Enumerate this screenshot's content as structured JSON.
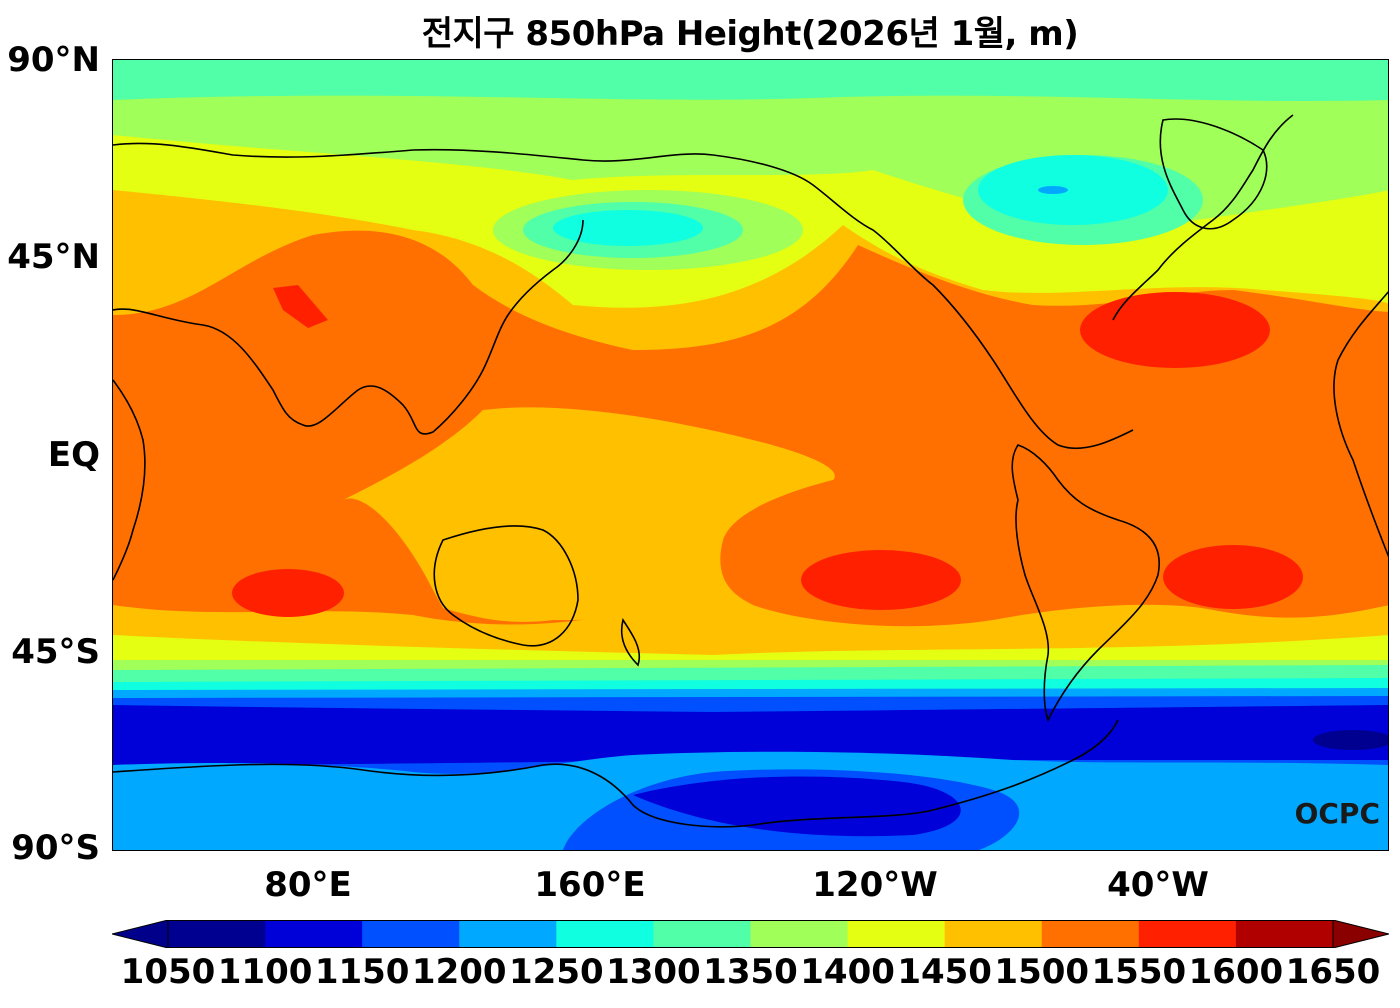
{
  "title": "전지구 850hPa Height(2026년 1월, m)",
  "lat_labels": [
    "90°N",
    "45°N",
    "EQ",
    "45°S",
    "90°S"
  ],
  "lon_labels": [
    "80°E",
    "160°E",
    "120°W",
    "40°W"
  ],
  "watermark": "OCPC",
  "colorbar": {
    "levels": [
      "1050",
      "1100",
      "1150",
      "1200",
      "1250",
      "1300",
      "1350",
      "1400",
      "1450",
      "1500",
      "1550",
      "1600",
      "1650"
    ],
    "colors": [
      "#000090",
      "#0000d8",
      "#0050ff",
      "#00a8ff",
      "#10ffe0",
      "#50ffa8",
      "#a0ff58",
      "#e4ff12",
      "#ffc000",
      "#ff7000",
      "#ff2000",
      "#b00000"
    ],
    "under_color": "#00008a",
    "over_color": "#8a0000"
  }
}
